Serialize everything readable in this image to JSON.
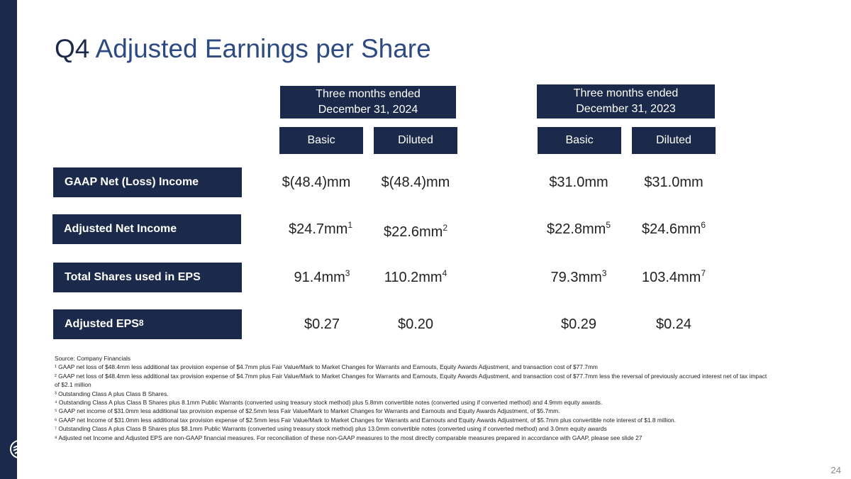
{
  "title": {
    "prefix": "Q4",
    "main": "Adjusted Earnings per Share"
  },
  "periods": [
    {
      "line1": "Three months ended",
      "line2": "December 31, 2024"
    },
    {
      "line1": "Three months ended",
      "line2": "December 31, 2023"
    }
  ],
  "columns": [
    "Basic",
    "Diluted",
    "Basic",
    "Diluted"
  ],
  "rows": [
    {
      "label": "GAAP Net (Loss) Income",
      "label_sup": "",
      "cells": [
        {
          "v": "$(48.4)mm",
          "s": ""
        },
        {
          "v": "$(48.4)mm",
          "s": ""
        },
        {
          "v": "$31.0mm",
          "s": ""
        },
        {
          "v": "$31.0mm",
          "s": ""
        }
      ]
    },
    {
      "label": "Adjusted Net Income",
      "label_sup": "",
      "cells": [
        {
          "v": "$24.7mm",
          "s": "1"
        },
        {
          "v": "$22.6mm",
          "s": "2"
        },
        {
          "v": "$22.8mm",
          "s": "5"
        },
        {
          "v": "$24.6mm",
          "s": "6"
        }
      ]
    },
    {
      "label": "Total Shares used in EPS",
      "label_sup": "",
      "cells": [
        {
          "v": "91.4mm",
          "s": "3"
        },
        {
          "v": "110.2mm",
          "s": "4"
        },
        {
          "v": "79.3mm",
          "s": "3"
        },
        {
          "v": "103.4mm",
          "s": "7"
        }
      ]
    },
    {
      "label": "Adjusted EPS",
      "label_sup": "8",
      "cells": [
        {
          "v": "$0.27",
          "s": ""
        },
        {
          "v": "$0.20",
          "s": ""
        },
        {
          "v": "$0.29",
          "s": ""
        },
        {
          "v": "$0.24",
          "s": ""
        }
      ]
    }
  ],
  "footnotes": [
    "Source: Company Financials",
    "¹ GAAP net loss of $48.4mm less additional tax provision expense of $4.7mm plus Fair Value/Mark to Market Changes for Warrants and Earnouts, Equity Awards Adjustment, and transaction cost of $77.7mm",
    "²  GAAP net loss of $48.4mm less additional tax provision expense of $4.7mm plus Fair Value/Mark to Market Changes for Warrants and Earnouts, Equity Awards Adjustment, and transaction cost of $77.7mm less the reversal of previously accrued interest net of tax impact of  $2.1 million",
    "³ Outstanding Class A plus Class B Shares.",
    "⁴ Outstanding Class A plus Class B Shares plus 8.1mm Public Warrants (converted using treasury stock method) plus 5.8mm convertible notes (converted using if converted method) and 4.9mm equity awards.",
    "⁵ GAAP net income of $31.0mm less additional tax provision expense of $2.5mm less Fair Value/Mark to Market Changes for Warrants and Earnouts and Equity Awards Adjustment, of $5.7mm.",
    "⁶ GAAP net Income of $31.0mm less additional tax provision expense of $2.5mm less Fair Value/Mark to Market Changes for Warrants and Earnouts and Equity Awards Adjustment, of $5.7mm plus convertible note interest of $1.8 million.",
    "⁷ Outstanding Class A plus Class B Shares plus $8.1mm Public Warrants (converted using treasury stock method)  plus 13.0mm convertible notes (converted using if converted method) and 3.0mm equity awards",
    "⁸ Adjusted net Income and Adjusted EPS are non-GAAP financial measures.  For reconciliation of these non-GAAP measures to the most directly comparable measures prepared in accordance with GAAP, please see slide 27"
  ],
  "page_number": "24",
  "colors": {
    "navy": "#1b2a4a",
    "title_blue": "#2d4b80"
  }
}
